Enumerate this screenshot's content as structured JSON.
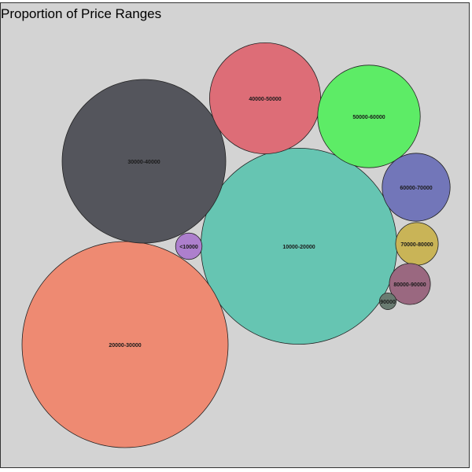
{
  "chart_data": {
    "type": "bubble",
    "title": "Proportion of Price Ranges",
    "categories": [
      "10000-20000",
      "20000-30000",
      "30000-40000",
      "40000-50000",
      "50000-60000",
      "60000-70000",
      "70000-80000",
      "80000-90000",
      "<10000",
      "90000"
    ],
    "values": [
      27.4,
      30.3,
      19.1,
      8.8,
      7.5,
      3.3,
      1.3,
      1.2,
      0.5,
      0.2
    ],
    "colors": [
      "#66c5b2",
      "#ee8a72",
      "#54555c",
      "#dd6d77",
      "#5dec66",
      "#7276b9",
      "#c9b457",
      "#9a6880",
      "#ad7fcd",
      "#697b71"
    ],
    "background": "#d3d3d3",
    "legend": "none"
  }
}
